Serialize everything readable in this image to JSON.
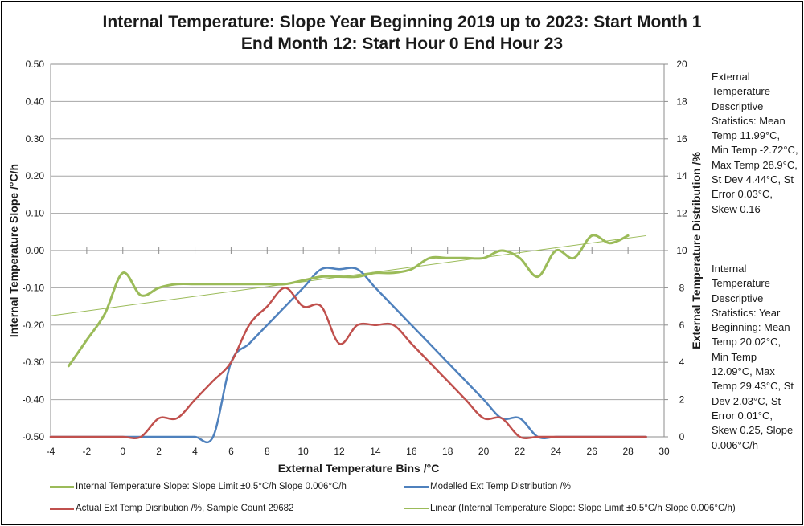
{
  "title_lines": [
    "Internal Temperature: Slope Year Beginning 2019 up to 2023: Start Month 1",
    "End Month 12: Start Hour 0 End Hour 23"
  ],
  "notes": {
    "external": "External Temperature Descriptive Statistics: Mean Temp 11.99°C, Min Temp -2.72°C, Max Temp 28.9°C, St Dev 4.44°C, St Error 0.03°C, Skew 0.16",
    "internal": "Internal Temperature Descriptive Statistics: Year Beginning: Mean Temp 20.02°C, Min Temp 12.09°C, Max Temp 29.43°C, St Dev 2.03°C, St Error 0.01°C, Skew 0.25, Slope 0.006°C/h"
  },
  "legend": {
    "slope": "Internal Temperature Slope: Slope Limit ±0.5°C/h Slope 0.006°C/h",
    "modelled": "Modelled Ext Temp Distribution /%",
    "actual": "Actual Ext Temp Disribution /%, Sample Count 29682",
    "linear": "Linear (Internal Temperature Slope: Slope Limit ±0.5°C/h Slope 0.006°C/h)"
  },
  "colors": {
    "slope": "#9bbb59",
    "modelled": "#4f81bd",
    "actual": "#c0504d",
    "linear": "#9bbb59",
    "grid": "#a6a6a6"
  },
  "chart_data": {
    "type": "line",
    "xlabel": "External Temperature Bins /°C",
    "ylabel_left": "Internal Temperature Slope /°C/h",
    "ylabel_right": "External Temperature Distribution /%",
    "xlim": [
      -4,
      30
    ],
    "x_ticks": [
      -4,
      -2,
      0,
      2,
      4,
      6,
      8,
      10,
      12,
      14,
      16,
      18,
      20,
      22,
      24,
      26,
      28,
      30
    ],
    "ylim_left": [
      -0.5,
      0.5
    ],
    "y_ticks_left": [
      "0.50",
      "0.40",
      "0.30",
      "0.20",
      "0.10",
      "0.00",
      "-0.10",
      "-0.20",
      "-0.30",
      "-0.40",
      "-0.50"
    ],
    "ylim_right": [
      0,
      20
    ],
    "y_ticks_right": [
      20,
      18,
      16,
      14,
      12,
      10,
      8,
      6,
      4,
      2,
      0
    ],
    "grid": "horizontal",
    "legend_position": "bottom",
    "series": [
      {
        "name": "Internal Temperature Slope: Slope Limit ±0.5°C/h Slope 0.006°C/h",
        "axis": "left",
        "x": [
          -3,
          -2,
          -1,
          0,
          1,
          2,
          3,
          4,
          5,
          6,
          7,
          8,
          9,
          10,
          11,
          12,
          13,
          14,
          15,
          16,
          17,
          18,
          19,
          20,
          21,
          22,
          23,
          24,
          25,
          26,
          27,
          28
        ],
        "y": [
          -0.31,
          -0.24,
          -0.17,
          -0.06,
          -0.12,
          -0.1,
          -0.09,
          -0.09,
          -0.09,
          -0.09,
          -0.09,
          -0.09,
          -0.09,
          -0.08,
          -0.07,
          -0.07,
          -0.07,
          -0.06,
          -0.06,
          -0.05,
          -0.02,
          -0.02,
          -0.02,
          -0.02,
          0.0,
          -0.02,
          -0.07,
          0.0,
          -0.02,
          0.04,
          0.02,
          0.04
        ]
      },
      {
        "name": "Modelled Ext Temp Distribution /%",
        "axis": "right",
        "x": [
          -4,
          -3,
          -2,
          -1,
          0,
          1,
          2,
          3,
          4,
          5,
          6,
          7,
          8,
          9,
          10,
          11,
          12,
          13,
          14,
          15,
          16,
          17,
          18,
          19,
          20,
          21,
          22,
          23,
          24,
          25,
          26,
          27,
          28,
          29
        ],
        "y": [
          0,
          0,
          0,
          0,
          0,
          0,
          0,
          0,
          0,
          0,
          4,
          5,
          6,
          7,
          8,
          9,
          9,
          9,
          8,
          7,
          6,
          5,
          4,
          3,
          2,
          1,
          1,
          0,
          0,
          0,
          0,
          0,
          0,
          0
        ]
      },
      {
        "name": "Actual Ext Temp Disribution /%, Sample Count 29682",
        "axis": "right",
        "x": [
          -4,
          -3,
          -2,
          -1,
          0,
          1,
          2,
          3,
          4,
          5,
          6,
          7,
          8,
          9,
          10,
          11,
          12,
          13,
          14,
          15,
          16,
          17,
          18,
          19,
          20,
          21,
          22,
          23,
          24,
          25,
          26,
          27,
          28,
          29
        ],
        "y": [
          0,
          0,
          0,
          0,
          0,
          0,
          1,
          1,
          2,
          3,
          4,
          6,
          7,
          8,
          7,
          7,
          5,
          6,
          6,
          6,
          5,
          4,
          3,
          2,
          1,
          1,
          0,
          0,
          0,
          0,
          0,
          0,
          0,
          0
        ]
      },
      {
        "name": "Linear (Internal Temperature Slope: Slope Limit ±0.5°C/h Slope 0.006°C/h)",
        "axis": "left",
        "trendline": true,
        "x": [
          -4,
          29
        ],
        "y": [
          -0.175,
          0.04
        ]
      }
    ]
  }
}
